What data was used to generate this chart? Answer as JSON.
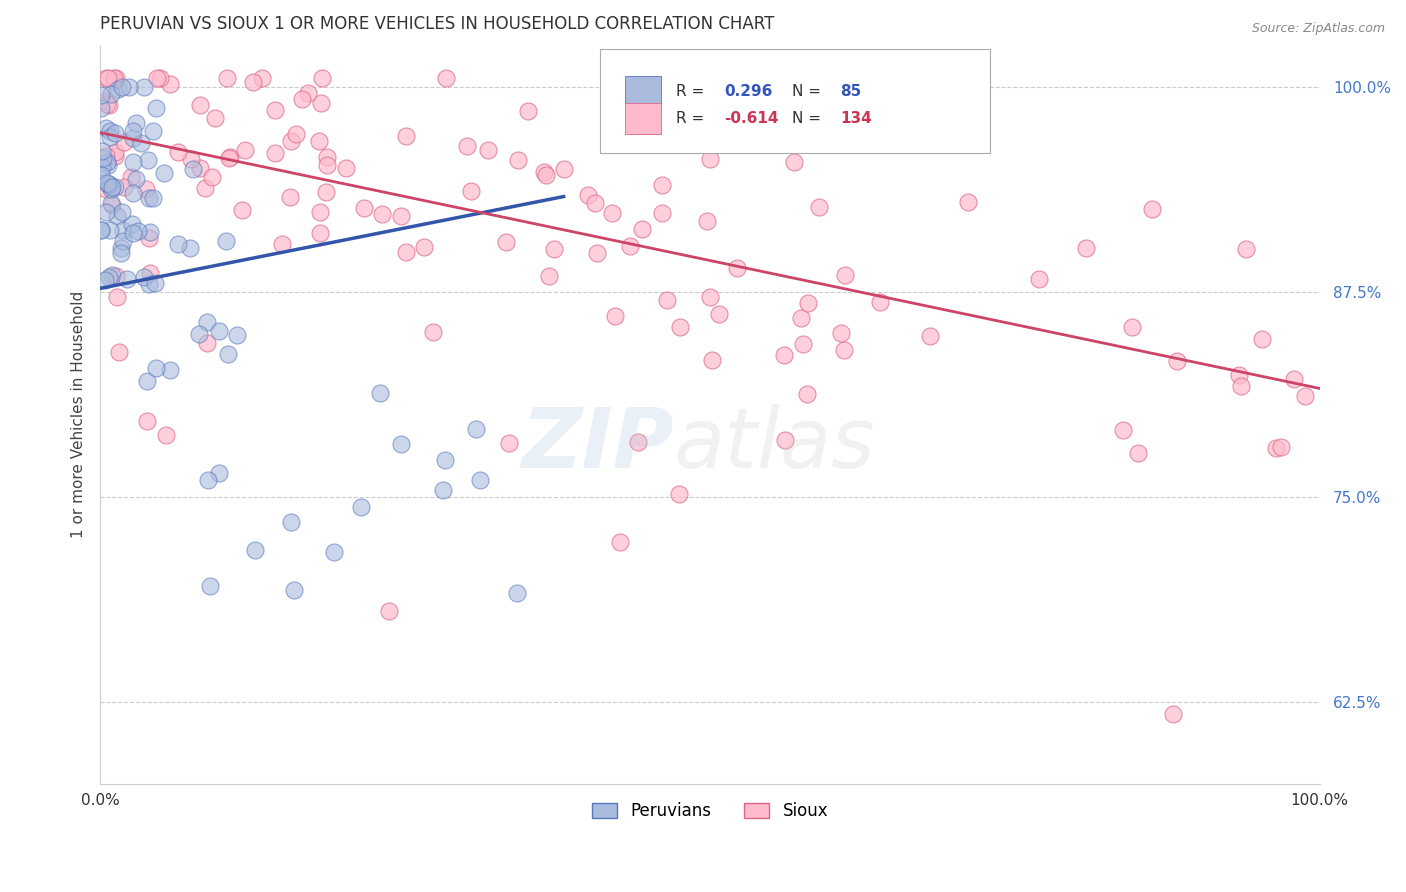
{
  "title": "PERUVIAN VS SIOUX 1 OR MORE VEHICLES IN HOUSEHOLD CORRELATION CHART",
  "ylabel": "1 or more Vehicles in Household",
  "source": "Source: ZipAtlas.com",
  "xlim": [
    0.0,
    1.0
  ],
  "ylim": [
    0.575,
    1.025
  ],
  "yticks": [
    0.625,
    0.75,
    0.875,
    1.0
  ],
  "ytick_labels": [
    "62.5%",
    "75.0%",
    "87.5%",
    "100.0%"
  ],
  "xtick_labels": [
    "0.0%",
    "",
    "",
    "",
    "100.0%"
  ],
  "legend_blue_r": "0.296",
  "legend_blue_n": "85",
  "legend_pink_r": "-0.614",
  "legend_pink_n": "134",
  "blue_fill": "#aabbdd",
  "blue_edge": "#5577bb",
  "pink_fill": "#ffbbcc",
  "pink_edge": "#dd6688",
  "blue_line": "#3355aa",
  "pink_line": "#cc4466",
  "blue_line_pts": [
    [
      0.0,
      0.877
    ],
    [
      0.38,
      0.933
    ]
  ],
  "pink_line_pts": [
    [
      0.0,
      0.972
    ],
    [
      1.0,
      0.816
    ]
  ],
  "ytick_color": "#4477cc",
  "xtick_color": "#333333"
}
